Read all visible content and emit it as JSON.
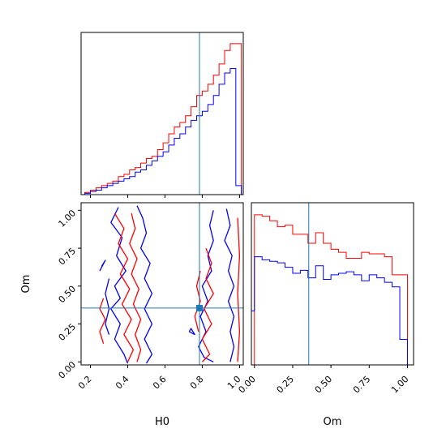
{
  "chart_data": [
    {
      "type": "histogram",
      "panel": "h0-marginal",
      "xlim": [
        0.15,
        1.02
      ],
      "bin_edges": [
        0.17,
        0.2,
        0.23,
        0.26,
        0.29,
        0.32,
        0.35,
        0.38,
        0.41,
        0.44,
        0.47,
        0.5,
        0.53,
        0.56,
        0.59,
        0.62,
        0.65,
        0.68,
        0.71,
        0.74,
        0.77,
        0.8,
        0.83,
        0.86,
        0.89,
        0.92,
        0.95,
        0.98,
        1.01
      ],
      "series": [
        {
          "color": "#ff0000",
          "values": [
            0.5,
            1,
            1.5,
            2,
            2.5,
            3,
            4,
            4.5,
            5.5,
            6,
            7,
            8,
            8.5,
            10,
            11.5,
            13.5,
            15,
            16,
            17.5,
            19.5,
            22,
            23,
            24.5,
            26.5,
            29,
            32,
            33.5,
            33.5
          ]
        },
        {
          "color": "#0000ff",
          "values": [
            0.3,
            0.7,
            1,
            1.5,
            2,
            2.5,
            3,
            3.5,
            4,
            5,
            5.5,
            6.5,
            7.5,
            8.5,
            9.5,
            11,
            12.5,
            13.5,
            15,
            16.5,
            17.5,
            18.5,
            20,
            22,
            24.5,
            27,
            28,
            2
          ]
        }
      ],
      "truth_line": 0.785,
      "truth_color": "#1f77b4",
      "x_ticks": [
        "0.2",
        "0.4",
        "0.6",
        "0.8",
        "1.0"
      ]
    },
    {
      "type": "contour",
      "panel": "h0-om-joint",
      "xlabel": "H0",
      "ylabel": "Om",
      "xlim": [
        0.15,
        1.02
      ],
      "ylim": [
        -0.02,
        1.05
      ],
      "x_ticks": [
        "0.2",
        "0.4",
        "0.6",
        "0.8",
        "1.0"
      ],
      "y_ticks": [
        "0.00",
        "0.25",
        "0.50",
        "0.75",
        "1.00"
      ],
      "truth": {
        "x": 0.785,
        "y": 0.355
      },
      "truth_color": "#1f77b4",
      "series": [
        {
          "color": "#0000ff",
          "contours": [
            [
              [
                0.35,
                1.02
              ],
              [
                0.31,
                0.92
              ],
              [
                0.37,
                0.82
              ],
              [
                0.34,
                0.7
              ],
              [
                0.39,
                0.6
              ],
              [
                0.33,
                0.5
              ],
              [
                0.36,
                0.42
              ],
              [
                0.31,
                0.35
              ],
              [
                0.36,
                0.25
              ],
              [
                0.33,
                0.15
              ],
              [
                0.38,
                0.05
              ],
              [
                0.4,
                -0.01
              ]
            ],
            [
              [
                0.45,
                1.03
              ],
              [
                0.48,
                0.95
              ],
              [
                0.5,
                0.85
              ],
              [
                0.47,
                0.75
              ],
              [
                0.52,
                0.65
              ],
              [
                0.49,
                0.55
              ],
              [
                0.53,
                0.45
              ],
              [
                0.49,
                0.35
              ],
              [
                0.53,
                0.25
              ],
              [
                0.49,
                0.15
              ],
              [
                0.53,
                0.05
              ],
              [
                0.5,
                -0.01
              ]
            ],
            [
              [
                0.86,
                1.0
              ],
              [
                0.84,
                0.9
              ],
              [
                0.86,
                0.8
              ],
              [
                0.83,
                0.7
              ],
              [
                0.85,
                0.6
              ],
              [
                0.8,
                0.5
              ],
              [
                0.83,
                0.4
              ],
              [
                0.79,
                0.3
              ],
              [
                0.82,
                0.2
              ],
              [
                0.78,
                0.1
              ],
              [
                0.81,
                0.03
              ],
              [
                0.86,
                0.0
              ]
            ],
            [
              [
                0.93,
                1.01
              ],
              [
                0.95,
                0.9
              ],
              [
                0.92,
                0.8
              ],
              [
                0.96,
                0.7
              ],
              [
                0.94,
                0.6
              ],
              [
                0.97,
                0.5
              ],
              [
                0.94,
                0.4
              ],
              [
                0.97,
                0.3
              ],
              [
                0.95,
                0.2
              ],
              [
                0.97,
                0.1
              ],
              [
                0.95,
                0.0
              ]
            ],
            [
              [
                0.3,
                0.55
              ],
              [
                0.28,
                0.45
              ],
              [
                0.3,
                0.35
              ],
              [
                0.28,
                0.25
              ],
              [
                0.3,
                0.18
              ]
            ],
            [
              [
                0.73,
                0.2
              ],
              [
                0.76,
                0.18
              ],
              [
                0.74,
                0.22
              ],
              [
                0.73,
                0.2
              ]
            ],
            [
              [
                0.25,
                0.6
              ],
              [
                0.28,
                0.67
              ],
              [
                0.26,
                0.63
              ]
            ]
          ]
        },
        {
          "color": "#ff0000",
          "contours": [
            [
              [
                0.33,
                0.98
              ],
              [
                0.38,
                0.88
              ],
              [
                0.35,
                0.78
              ],
              [
                0.4,
                0.68
              ],
              [
                0.36,
                0.58
              ],
              [
                0.41,
                0.48
              ],
              [
                0.37,
                0.38
              ],
              [
                0.42,
                0.28
              ],
              [
                0.38,
                0.18
              ],
              [
                0.43,
                0.08
              ],
              [
                0.4,
                0.0
              ]
            ],
            [
              [
                0.42,
                0.98
              ],
              [
                0.44,
                0.88
              ],
              [
                0.41,
                0.78
              ],
              [
                0.45,
                0.68
              ],
              [
                0.42,
                0.58
              ],
              [
                0.46,
                0.48
              ],
              [
                0.43,
                0.38
              ],
              [
                0.47,
                0.28
              ],
              [
                0.44,
                0.18
              ],
              [
                0.47,
                0.08
              ],
              [
                0.45,
                0.0
              ]
            ],
            [
              [
                0.82,
                0.75
              ],
              [
                0.85,
                0.65
              ],
              [
                0.82,
                0.55
              ],
              [
                0.86,
                0.45
              ],
              [
                0.81,
                0.35
              ],
              [
                0.85,
                0.25
              ],
              [
                0.8,
                0.15
              ],
              [
                0.84,
                0.05
              ],
              [
                0.8,
                0.0
              ]
            ],
            [
              [
                0.79,
                0.6
              ],
              [
                0.77,
                0.5
              ],
              [
                0.79,
                0.4
              ],
              [
                0.76,
                0.3
              ],
              [
                0.78,
                0.2
              ]
            ],
            [
              [
                0.27,
                0.42
              ],
              [
                0.25,
                0.35
              ],
              [
                0.28,
                0.28
              ],
              [
                0.25,
                0.2
              ],
              [
                0.27,
                0.12
              ]
            ],
            [
              [
                0.99,
                0.95
              ],
              [
                1.0,
                0.7
              ],
              [
                0.99,
                0.45
              ],
              [
                1.0,
                0.2
              ],
              [
                0.99,
                0.0
              ]
            ]
          ]
        }
      ]
    },
    {
      "type": "histogram",
      "panel": "om-marginal",
      "xlabel": "Om",
      "xlim": [
        -0.02,
        1.04
      ],
      "bin_edges": [
        -0.02,
        0.0,
        0.05,
        0.1,
        0.15,
        0.2,
        0.25,
        0.3,
        0.35,
        0.4,
        0.45,
        0.5,
        0.55,
        0.6,
        0.65,
        0.7,
        0.75,
        0.8,
        0.85,
        0.9,
        0.95,
        1.0
      ],
      "series": [
        {
          "color": "#ff0000",
          "values": [
            0.0,
            1.0,
            0.99,
            0.96,
            0.92,
            0.93,
            0.87,
            0.87,
            0.81,
            0.88,
            0.81,
            0.77,
            0.75,
            0.71,
            0.71,
            0.75,
            0.74,
            0.74,
            0.72,
            0.6,
            0.6
          ]
        },
        {
          "color": "#0000ff",
          "values": [
            0.36,
            0.72,
            0.7,
            0.69,
            0.68,
            0.65,
            0.61,
            0.63,
            0.58,
            0.66,
            0.57,
            0.6,
            0.61,
            0.62,
            0.6,
            0.56,
            0.6,
            0.58,
            0.55,
            0.52,
            0.17
          ]
        }
      ],
      "truth_line": 0.355,
      "truth_color": "#1f77b4",
      "x_ticks": [
        "0.00",
        "0.25",
        "0.50",
        "0.75",
        "1.00"
      ]
    }
  ]
}
